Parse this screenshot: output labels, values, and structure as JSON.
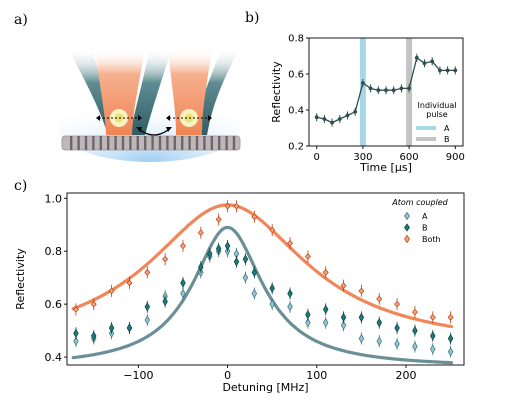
{
  "panel_labels": {
    "a": "a)",
    "b": "b)",
    "c": "c)"
  },
  "chart_data": [
    {
      "id": "b",
      "type": "line",
      "xlabel": "Time [μs]",
      "ylabel": "Reflectivity",
      "xlim": [
        -50,
        950
      ],
      "ylim": [
        0.2,
        0.8
      ],
      "xticks": [
        0,
        300,
        600,
        900
      ],
      "yticks": [
        0.2,
        0.4,
        0.6,
        0.8
      ],
      "ytick_labels": [
        "0.2",
        "0.4",
        "0.6",
        "0.8"
      ],
      "line_color": "#2f4f4f",
      "x": [
        0,
        50,
        100,
        150,
        200,
        250,
        300,
        350,
        400,
        450,
        500,
        550,
        600,
        650,
        700,
        750,
        800,
        850,
        900
      ],
      "y": [
        0.36,
        0.35,
        0.33,
        0.35,
        0.37,
        0.39,
        0.55,
        0.52,
        0.51,
        0.51,
        0.51,
        0.52,
        0.52,
        0.69,
        0.66,
        0.67,
        0.62,
        0.62,
        0.62
      ],
      "pulses": [
        {
          "name": "A",
          "x": 300,
          "color": "#a8d8e8"
        },
        {
          "name": "B",
          "x": 600,
          "color": "#c4c4c4"
        }
      ],
      "legend_title": "Individual\npulse",
      "legend_position": "right"
    },
    {
      "id": "c",
      "type": "scatter",
      "xlabel": "Detuning [MHz]",
      "ylabel": "Reflectivity",
      "xlim": [
        -180,
        265
      ],
      "ylim": [
        0.37,
        1.02
      ],
      "xticks": [
        -100,
        0,
        100,
        200
      ],
      "yticks": [
        0.4,
        0.6,
        0.8,
        1.0
      ],
      "ytick_labels": [
        "0.4",
        "0.6",
        "0.8",
        "1.0"
      ],
      "legend_title": "Atom coupled",
      "legend_position": "top-right",
      "series": [
        {
          "name": "A",
          "color": "#8ec8d4",
          "edge": "#3d6e78",
          "x": [
            -170,
            -150,
            -130,
            -110,
            -90,
            -70,
            -50,
            -30,
            -20,
            -10,
            0,
            10,
            20,
            30,
            50,
            70,
            90,
            110,
            130,
            150,
            170,
            190,
            210,
            230,
            250
          ],
          "y": [
            0.46,
            0.47,
            0.49,
            0.51,
            0.54,
            0.63,
            0.64,
            0.72,
            0.78,
            0.8,
            0.8,
            0.79,
            0.7,
            0.64,
            0.6,
            0.59,
            0.53,
            0.53,
            0.52,
            0.47,
            0.46,
            0.45,
            0.44,
            0.43,
            0.42
          ]
        },
        {
          "name": "B",
          "color": "#1c7b7e",
          "edge": "#0d3f40",
          "x": [
            -170,
            -150,
            -130,
            -110,
            -90,
            -70,
            -50,
            -30,
            -20,
            -10,
            0,
            10,
            20,
            30,
            50,
            70,
            90,
            110,
            130,
            150,
            170,
            190,
            210,
            230,
            250
          ],
          "y": [
            0.49,
            0.48,
            0.51,
            0.51,
            0.59,
            0.61,
            0.68,
            0.74,
            0.79,
            0.81,
            0.82,
            0.76,
            0.77,
            0.72,
            0.66,
            0.64,
            0.56,
            0.58,
            0.55,
            0.55,
            0.53,
            0.51,
            0.5,
            0.48,
            0.47
          ]
        },
        {
          "name": "Both",
          "color": "#f0a878",
          "edge": "#c03c10",
          "x": [
            -170,
            -150,
            -130,
            -110,
            -90,
            -70,
            -50,
            -30,
            -10,
            0,
            10,
            30,
            50,
            70,
            90,
            110,
            130,
            150,
            170,
            190,
            210,
            230,
            250
          ],
          "y": [
            0.58,
            0.6,
            0.65,
            0.68,
            0.72,
            0.77,
            0.82,
            0.87,
            0.92,
            0.97,
            0.97,
            0.93,
            0.88,
            0.83,
            0.78,
            0.72,
            0.67,
            0.65,
            0.62,
            0.6,
            0.57,
            0.55,
            0.55
          ]
        }
      ],
      "fits": [
        {
          "name": "Both fit",
          "color": "#f0875a",
          "peak": 0.975,
          "base": 0.43,
          "hwhm": 108
        },
        {
          "name": "Single fit",
          "color": "#6a8f96",
          "peak": 0.89,
          "base": 0.36,
          "hwhm": 48
        }
      ]
    }
  ]
}
